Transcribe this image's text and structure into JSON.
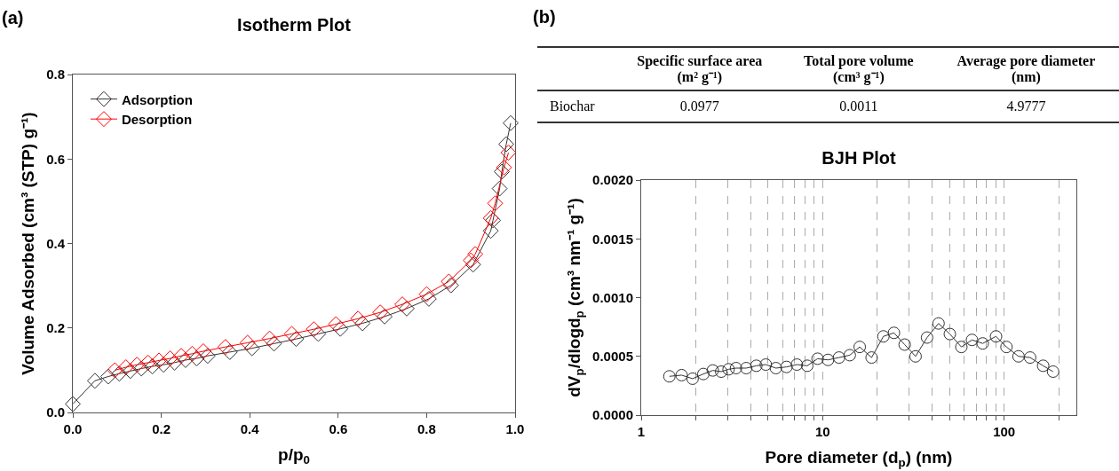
{
  "chart_data": [
    {
      "type": "line",
      "title": "Isotherm Plot",
      "xlabel": "p/p$_{0}$",
      "ylabel": "Volume Adsorbed (cm³ (STP) g⁻¹)",
      "annotations": [
        "(a)"
      ],
      "xlim": [
        0,
        1
      ],
      "ylim": [
        0,
        0.8
      ],
      "xticks": [
        {
          "value": 0,
          "label": "0.0"
        },
        0.2,
        0.4,
        0.6,
        0.8,
        {
          "value": 1,
          "label": "1.0"
        }
      ],
      "yticks": [
        {
          "value": 0,
          "label": "0.0"
        },
        0.2,
        0.4,
        0.6,
        0.8
      ],
      "marker": "diamond",
      "legend": "top left",
      "line_style": "solid",
      "series": [
        {
          "name": "Adsorption",
          "color": "#333333",
          "x": [
            0,
            0.05,
            0.08,
            0.105,
            0.13,
            0.155,
            0.18,
            0.205,
            0.23,
            0.255,
            0.28,
            0.305,
            0.355,
            0.405,
            0.455,
            0.505,
            0.555,
            0.605,
            0.655,
            0.705,
            0.755,
            0.805,
            0.855,
            0.905,
            0.945,
            0.95,
            0.965,
            0.97,
            0.98,
            0.99
          ],
          "values": [
            0.02,
            0.075,
            0.085,
            0.092,
            0.098,
            0.104,
            0.109,
            0.113,
            0.118,
            0.124,
            0.128,
            0.134,
            0.143,
            0.152,
            0.163,
            0.174,
            0.186,
            0.198,
            0.211,
            0.227,
            0.246,
            0.269,
            0.301,
            0.35,
            0.43,
            0.455,
            0.53,
            0.57,
            0.635,
            0.685
          ]
        },
        {
          "name": "Desorption",
          "color": "#ff0000",
          "x": [
            0.095,
            0.12,
            0.145,
            0.17,
            0.195,
            0.22,
            0.245,
            0.27,
            0.295,
            0.345,
            0.395,
            0.445,
            0.495,
            0.545,
            0.595,
            0.645,
            0.695,
            0.745,
            0.8,
            0.85,
            0.9,
            0.91,
            0.945,
            0.955,
            0.975,
            0.985
          ],
          "values": [
            0.1,
            0.107,
            0.113,
            0.118,
            0.123,
            0.128,
            0.134,
            0.139,
            0.145,
            0.155,
            0.165,
            0.175,
            0.186,
            0.197,
            0.209,
            0.222,
            0.237,
            0.256,
            0.28,
            0.31,
            0.36,
            0.375,
            0.46,
            0.495,
            0.58,
            0.615
          ]
        }
      ]
    },
    {
      "type": "other",
      "annotations": [
        "(b)"
      ],
      "categories": [
        null,
        "Specific surface area (m² g⁻¹)",
        "Total pore volume (cm³ g⁻¹)",
        "Average pore diameter (nm)"
      ],
      "y_categories": [
        "Biochar"
      ],
      "cell_labels": [
        [
          "0.0977",
          "0.0011",
          "4.9777"
        ]
      ]
    },
    {
      "type": "line",
      "title": "BJH Plot",
      "xlabel": "Pore diameter (d$_{p}$) (nm)",
      "ylabel": "dV$_{p}$/dlogd$_{p}$ (cm³ nm⁻¹ g⁻¹)",
      "log": "x",
      "xlim": [
        1,
        250
      ],
      "xticks": [
        1,
        {
          "value": 2,
          "label": null
        },
        {
          "value": 3,
          "label": null
        },
        {
          "value": 4,
          "label": null
        },
        {
          "value": 5,
          "label": null
        },
        {
          "value": 6,
          "label": null
        },
        {
          "value": 7,
          "label": null
        },
        {
          "value": 8,
          "label": null
        },
        {
          "value": 9,
          "label": null
        },
        10,
        {
          "value": 20,
          "label": null
        },
        {
          "value": 30,
          "label": null
        },
        {
          "value": 40,
          "label": null
        },
        {
          "value": 50,
          "label": null
        },
        {
          "value": 60,
          "label": null
        },
        {
          "value": 70,
          "label": null
        },
        {
          "value": 80,
          "label": null
        },
        {
          "value": 90,
          "label": null
        },
        100,
        {
          "value": 200,
          "label": null
        }
      ],
      "ylim": [
        0,
        0.002
      ],
      "yticks": [
        {
          "value": 0,
          "label": "0.0000"
        },
        {
          "value": 0.0005,
          "label": "0.0005"
        },
        {
          "value": 0.001,
          "label": "0.0010"
        },
        {
          "value": 0.0015,
          "label": "0.0015"
        },
        {
          "value": 0.002,
          "label": "0.0020"
        }
      ],
      "grid": "x",
      "marker": "circle",
      "color": "#333333",
      "x": [
        1.43,
        1.67,
        1.92,
        2.2,
        2.48,
        2.76,
        3.03,
        3.33,
        3.79,
        4.31,
        4.86,
        5.52,
        6.32,
        7.21,
        8.22,
        9.37,
        10.7,
        12.3,
        14.1,
        16,
        18.6,
        21.6,
        24.7,
        28.3,
        32.5,
        37.6,
        43.5,
        50.2,
        58.1,
        66.5,
        76.2,
        90.2,
        103,
        120,
        139,
        164,
        186
      ],
      "values": [
        0.00033,
        0.00034,
        0.00031,
        0.00035,
        0.00038,
        0.00037,
        0.00039,
        0.0004,
        0.0004,
        0.00042,
        0.00043,
        0.0004,
        0.00041,
        0.00043,
        0.00042,
        0.00048,
        0.00047,
        0.00049,
        0.00051,
        0.00058,
        0.00049,
        0.00067,
        0.0007,
        0.0006,
        0.0005,
        0.00066,
        0.00078,
        0.00069,
        0.00058,
        0.00064,
        0.00061,
        0.00067,
        0.00058,
        0.0005,
        0.00049,
        0.00042,
        0.00037
      ]
    }
  ]
}
